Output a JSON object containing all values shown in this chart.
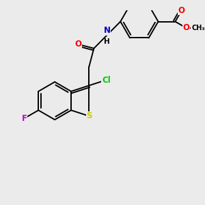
{
  "background_color": "#ebebeb",
  "atom_colors": {
    "C": "#000000",
    "Cl": "#00cc00",
    "F": "#cc00cc",
    "N": "#0000cc",
    "O": "#ff0000",
    "S": "#cccc00",
    "H": "#000000"
  },
  "bond_color": "#000000",
  "bond_width": 1.4,
  "font_size": 8.5,
  "figsize": [
    3.0,
    3.0
  ],
  "dpi": 100
}
